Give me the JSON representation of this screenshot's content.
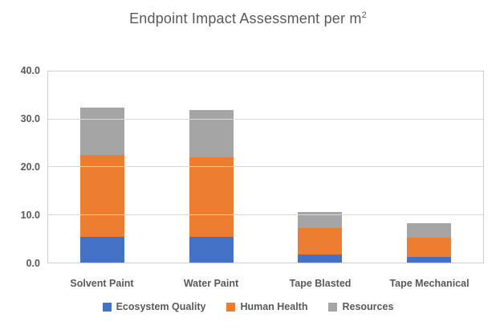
{
  "title": {
    "text": "Endpoint Impact Assessment per m",
    "superscript": "2"
  },
  "chart_data": {
    "type": "bar",
    "stacked": true,
    "title": "Endpoint Impact Assessment per m²",
    "categories": [
      "Solvent Paint",
      "Water Paint",
      "Tape Blasted",
      "Tape Mechanical"
    ],
    "series": [
      {
        "name": "Ecosystem Quality",
        "color": "#4472C4",
        "values": [
          5.4,
          5.4,
          1.6,
          1.1
        ]
      },
      {
        "name": "Human Health",
        "color": "#ED7D31",
        "values": [
          16.9,
          16.5,
          5.5,
          4.0
        ]
      },
      {
        "name": "Resources",
        "color": "#A5A5A5",
        "values": [
          9.8,
          9.7,
          3.4,
          3.1
        ]
      }
    ],
    "totals": [
      32.1,
      31.6,
      10.5,
      8.2
    ],
    "ylim": [
      0,
      40
    ],
    "ytick_interval": 10,
    "ytick_labels": [
      "0.0",
      "10.0",
      "20.0",
      "30.0",
      "40.0"
    ],
    "xlabel": "",
    "ylabel": "",
    "grid": true,
    "legend_position": "bottom",
    "colors": {
      "text": "#595959",
      "gridline": "#D9D9D9",
      "plot_border": "#CFCDCD",
      "background": "#FFFFFF"
    }
  }
}
